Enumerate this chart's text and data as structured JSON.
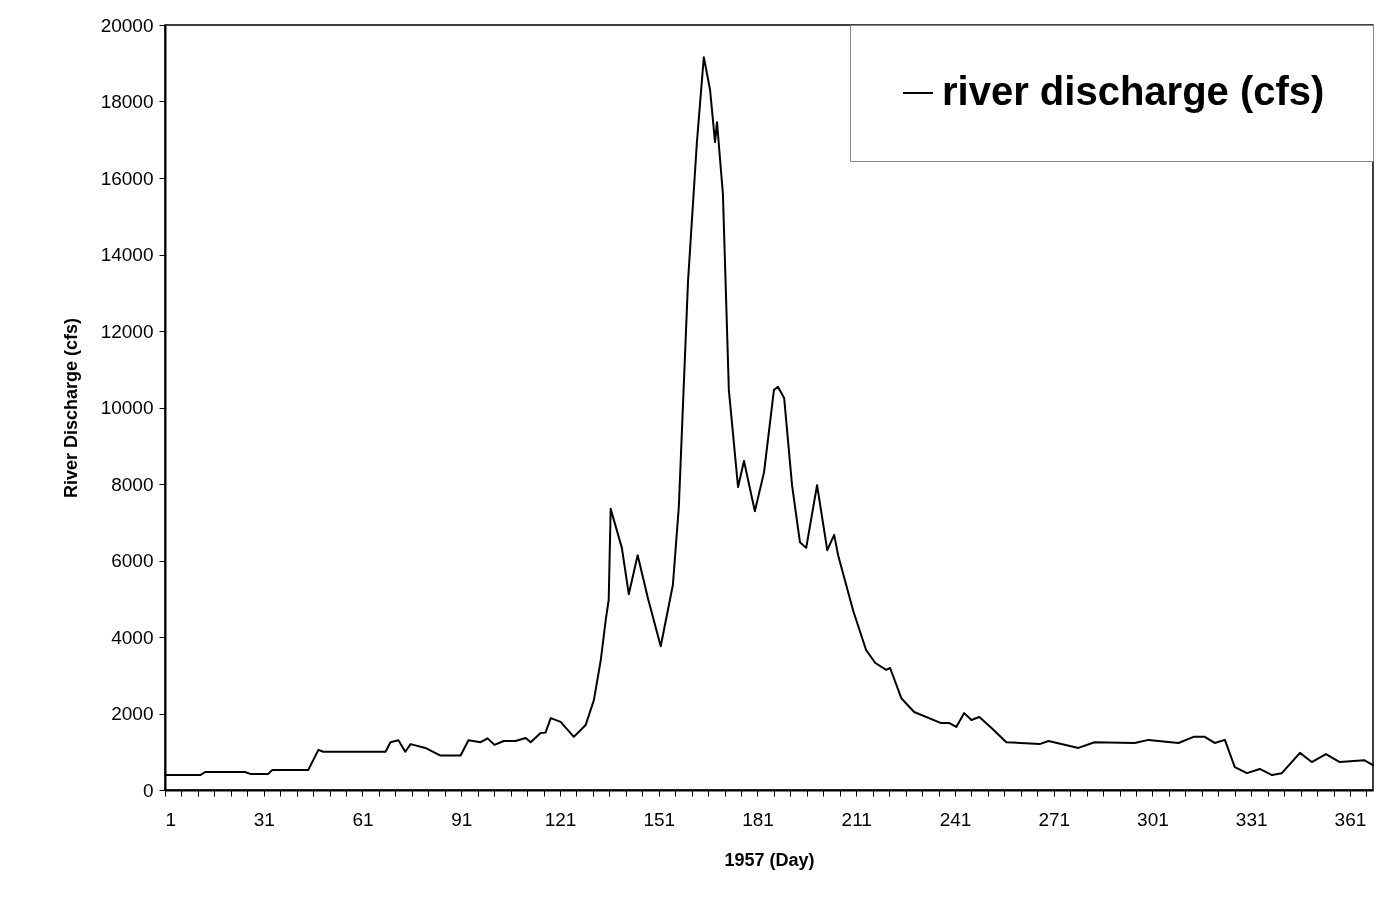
{
  "chart_data": {
    "type": "line",
    "xlabel": "1957 (Day)",
    "ylabel": "River Discharge (cfs)",
    "xlim": [
      1,
      368
    ],
    "ylim": [
      0,
      20000
    ],
    "xticks": [
      1,
      {
        "value": 6,
        "label": null
      },
      {
        "value": 11,
        "label": null
      },
      {
        "value": 16,
        "label": null
      },
      {
        "value": 21,
        "label": null
      },
      {
        "value": 26,
        "label": null
      },
      31,
      {
        "value": 36,
        "label": null
      },
      {
        "value": 41,
        "label": null
      },
      {
        "value": 46,
        "label": null
      },
      {
        "value": 51,
        "label": null
      },
      {
        "value": 56,
        "label": null
      },
      61,
      {
        "value": 66,
        "label": null
      },
      {
        "value": 71,
        "label": null
      },
      {
        "value": 76,
        "label": null
      },
      {
        "value": 81,
        "label": null
      },
      {
        "value": 86,
        "label": null
      },
      91,
      {
        "value": 96,
        "label": null
      },
      {
        "value": 101,
        "label": null
      },
      {
        "value": 106,
        "label": null
      },
      {
        "value": 111,
        "label": null
      },
      {
        "value": 116,
        "label": null
      },
      121,
      {
        "value": 126,
        "label": null
      },
      {
        "value": 131,
        "label": null
      },
      {
        "value": 136,
        "label": null
      },
      {
        "value": 141,
        "label": null
      },
      {
        "value": 146,
        "label": null
      },
      151,
      {
        "value": 156,
        "label": null
      },
      {
        "value": 161,
        "label": null
      },
      {
        "value": 166,
        "label": null
      },
      {
        "value": 171,
        "label": null
      },
      {
        "value": 176,
        "label": null
      },
      181,
      {
        "value": 186,
        "label": null
      },
      {
        "value": 191,
        "label": null
      },
      {
        "value": 196,
        "label": null
      },
      {
        "value": 201,
        "label": null
      },
      {
        "value": 206,
        "label": null
      },
      211,
      {
        "value": 216,
        "label": null
      },
      {
        "value": 221,
        "label": null
      },
      {
        "value": 226,
        "label": null
      },
      {
        "value": 231,
        "label": null
      },
      {
        "value": 236,
        "label": null
      },
      241,
      {
        "value": 246,
        "label": null
      },
      {
        "value": 251,
        "label": null
      },
      {
        "value": 256,
        "label": null
      },
      {
        "value": 261,
        "label": null
      },
      {
        "value": 266,
        "label": null
      },
      271,
      {
        "value": 276,
        "label": null
      },
      {
        "value": 281,
        "label": null
      },
      {
        "value": 286,
        "label": null
      },
      {
        "value": 291,
        "label": null
      },
      {
        "value": 296,
        "label": null
      },
      301,
      {
        "value": 306,
        "label": null
      },
      {
        "value": 311,
        "label": null
      },
      {
        "value": 316,
        "label": null
      },
      {
        "value": 321,
        "label": null
      },
      {
        "value": 326,
        "label": null
      },
      331,
      {
        "value": 336,
        "label": null
      },
      {
        "value": 341,
        "label": null
      },
      {
        "value": 346,
        "label": null
      },
      {
        "value": 351,
        "label": null
      },
      {
        "value": 356,
        "label": null
      },
      361,
      {
        "value": 366,
        "label": null
      }
    ],
    "yticks": [
      0,
      2000,
      4000,
      6000,
      8000,
      10000,
      12000,
      14000,
      16000,
      18000,
      20000
    ],
    "grid": false,
    "legend": "top right",
    "marker": "none",
    "line_style": "solid",
    "series": [
      {
        "name": "river discharge (cfs)",
        "color": "#000000",
        "x": [
          1,
          11.7,
          13.2,
          25.3,
          26.9,
          32.3,
          33.6,
          44.5,
          47.6,
          49.1,
          68,
          69.5,
          71.9,
          74,
          75.6,
          80.1,
          84.7,
          90.8,
          93.2,
          96.9,
          99,
          101.1,
          103.9,
          107.5,
          110.6,
          112.1,
          115.1,
          116.6,
          118.2,
          121.2,
          125.2,
          128.8,
          131.3,
          133.4,
          134.9,
          135.8,
          136.4,
          139.8,
          141.9,
          144.6,
          147.7,
          151.6,
          155.3,
          157.1,
          159.9,
          162.6,
          164.7,
          166.6,
          168.1,
          168.7,
          170.5,
          172.3,
          175.1,
          176.9,
          180.2,
          183,
          186,
          187.2,
          189.1,
          191.5,
          193.9,
          195.8,
          199.1,
          202.2,
          204.3,
          205.5,
          210.1,
          214,
          216.8,
          220.1,
          221.3,
          224.7,
          228.6,
          236.8,
          239.3,
          241.4,
          243.8,
          246,
          248.4,
          252.1,
          256.6,
          266.7,
          269.4,
          278.5,
          283.4,
          295.6,
          299.8,
          308.9,
          313.5,
          316.9,
          319.9,
          323,
          326,
          329.7,
          333.6,
          337.3,
          340.3,
          345.8,
          349.4,
          353.7,
          357.9,
          365.3,
          368
        ],
        "values": [
          390,
          390,
          470,
          470,
          420,
          420,
          520,
          520,
          1050,
          1000,
          1000,
          1250,
          1300,
          1000,
          1200,
          1100,
          900,
          900,
          1300,
          1250,
          1350,
          1180,
          1280,
          1280,
          1360,
          1250,
          1490,
          1500,
          1880,
          1780,
          1390,
          1700,
          2350,
          3400,
          4450,
          4970,
          7350,
          6330,
          5120,
          6140,
          5020,
          3760,
          5360,
          7400,
          13300,
          16940,
          19160,
          18300,
          16940,
          17460,
          15580,
          10460,
          7920,
          8600,
          7290,
          8310,
          10460,
          10540,
          10250,
          7970,
          6480,
          6330,
          7970,
          6270,
          6670,
          6140,
          4680,
          3660,
          3320,
          3140,
          3190,
          2400,
          2040,
          1750,
          1750,
          1650,
          2010,
          1830,
          1910,
          1620,
          1250,
          1200,
          1280,
          1100,
          1250,
          1230,
          1310,
          1230,
          1390,
          1390,
          1230,
          1310,
          600,
          440,
          550,
          390,
          440,
          970,
          730,
          940,
          730,
          780,
          650
        ]
      }
    ]
  }
}
